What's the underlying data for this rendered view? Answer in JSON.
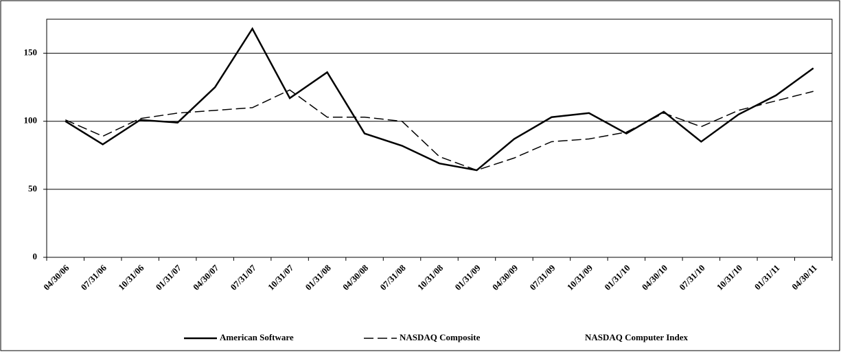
{
  "chart_data": {
    "type": "line",
    "categories": [
      "04/30/06",
      "07/31/06",
      "10/31/06",
      "01/31/07",
      "04/30/07",
      "07/31/07",
      "10/31/07",
      "01/31/08",
      "04/30/08",
      "07/31/08",
      "10/31/08",
      "01/31/09",
      "04/30/09",
      "07/31/09",
      "10/31/09",
      "01/31/10",
      "04/30/10",
      "07/31/10",
      "10/31/10",
      "01/31/11",
      "04/30/11"
    ],
    "series": [
      {
        "name": "American Software",
        "color": "#000000",
        "dash": false,
        "values": [
          100,
          83,
          101,
          99,
          125,
          168,
          117,
          136,
          91,
          82,
          69,
          64,
          87,
          103,
          106,
          91,
          107,
          85,
          105,
          119,
          139
        ]
      },
      {
        "name": "NASDAQ Composite",
        "color": "#000000",
        "dash": true,
        "values": [
          101,
          89,
          102,
          106,
          108,
          110,
          123,
          103,
          103,
          100,
          74,
          64,
          73,
          85,
          87,
          92,
          106,
          96,
          108,
          115,
          122
        ]
      },
      {
        "name": "NASDAQ Computer Index",
        "color": "#bbbbbb",
        "dash": true,
        "values": [
          null,
          null,
          null,
          null,
          null,
          null,
          null,
          null,
          null,
          null,
          null,
          null,
          null,
          null,
          null,
          null,
          null,
          null,
          null,
          null,
          null
        ]
      }
    ],
    "ylim": [
      0,
      175
    ],
    "yticks": [
      0,
      50,
      100,
      150
    ],
    "grid": true
  }
}
